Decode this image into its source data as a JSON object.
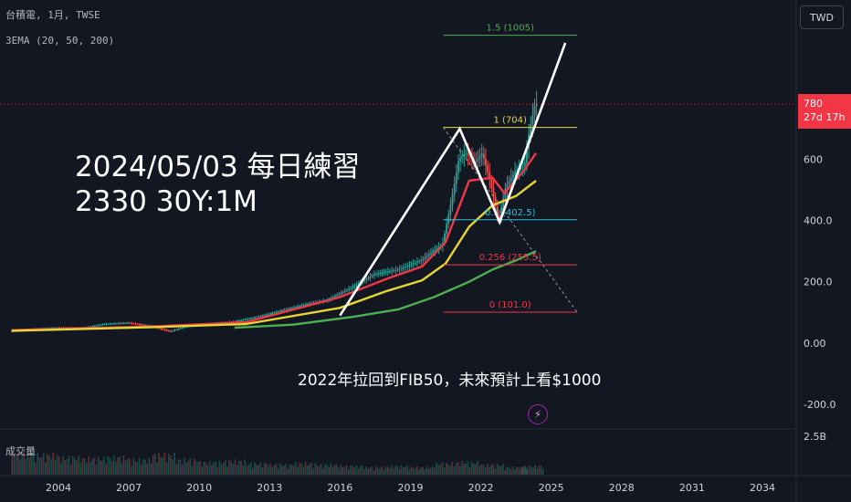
{
  "header": {
    "symbol_line": "台積電, 1月, TWSE",
    "indicator_line": "3EMA (20, 50, 200)",
    "currency": "TWD"
  },
  "price_tag": {
    "price": "780",
    "countdown": "27d 17h",
    "color": "#f23645"
  },
  "annotations": {
    "title_line1": "2024/05/03 每日練習",
    "title_line2": "2330 30Y:1M",
    "note": "2022年拉回到FIB50，未來預計上看$1000"
  },
  "volume_pane": {
    "label": "成交量",
    "max_label": "2.5B"
  },
  "chart_data": {
    "type": "candlestick",
    "symbol": "台積電",
    "interval": "1月",
    "exchange": "TWSE",
    "currency": "TWD",
    "last_price": 780,
    "x_ticks": [
      "2004",
      "2007",
      "2010",
      "2013",
      "2016",
      "2019",
      "2022",
      "2025",
      "2028",
      "2031",
      "2034"
    ],
    "y_ticks": [
      "600",
      "400.0",
      "200.0",
      "0.00",
      "-200.0"
    ],
    "ylim": [
      -230,
      1010
    ],
    "grid": false,
    "price_path": [
      [
        2002.0,
        38
      ],
      [
        2003.0,
        45
      ],
      [
        2004.0,
        50
      ],
      [
        2005.0,
        48
      ],
      [
        2006.0,
        62
      ],
      [
        2007.0,
        66
      ],
      [
        2008.0,
        55
      ],
      [
        2008.8,
        38
      ],
      [
        2009.5,
        55
      ],
      [
        2010.5,
        62
      ],
      [
        2011.5,
        70
      ],
      [
        2012.5,
        85
      ],
      [
        2013.5,
        105
      ],
      [
        2014.5,
        125
      ],
      [
        2015.5,
        140
      ],
      [
        2016.5,
        180
      ],
      [
        2017.5,
        225
      ],
      [
        2018.5,
        240
      ],
      [
        2019.5,
        270
      ],
      [
        2020.0,
        300
      ],
      [
        2020.4,
        320
      ],
      [
        2020.8,
        470
      ],
      [
        2021.1,
        600
      ],
      [
        2021.4,
        620
      ],
      [
        2021.8,
        590
      ],
      [
        2022.1,
        620
      ],
      [
        2022.4,
        540
      ],
      [
        2022.8,
        400
      ],
      [
        2023.1,
        510
      ],
      [
        2023.5,
        560
      ],
      [
        2023.9,
        580
      ],
      [
        2024.1,
        690
      ],
      [
        2024.35,
        780
      ]
    ],
    "ema": [
      {
        "name": "EMA 20",
        "color": "#f23645",
        "points": [
          [
            2002.0,
            42
          ],
          [
            2008.0,
            54
          ],
          [
            2012.0,
            68
          ],
          [
            2016.0,
            150
          ],
          [
            2018.0,
            210
          ],
          [
            2019.5,
            250
          ],
          [
            2020.5,
            330
          ],
          [
            2021.5,
            530
          ],
          [
            2022.5,
            540
          ],
          [
            2023.0,
            490
          ],
          [
            2023.8,
            560
          ],
          [
            2024.35,
            620
          ]
        ]
      },
      {
        "name": "EMA 50",
        "color": "#e6d633",
        "points": [
          [
            2002.0,
            40
          ],
          [
            2008.0,
            52
          ],
          [
            2012.0,
            62
          ],
          [
            2016.0,
            115
          ],
          [
            2018.0,
            170
          ],
          [
            2019.5,
            205
          ],
          [
            2020.5,
            260
          ],
          [
            2021.5,
            380
          ],
          [
            2022.5,
            450
          ],
          [
            2023.5,
            480
          ],
          [
            2024.35,
            530
          ]
        ]
      },
      {
        "name": "EMA 200",
        "color": "#4caf50",
        "points": [
          [
            2011.5,
            50
          ],
          [
            2014.0,
            60
          ],
          [
            2016.5,
            85
          ],
          [
            2018.5,
            110
          ],
          [
            2020.0,
            150
          ],
          [
            2021.5,
            200
          ],
          [
            2022.5,
            240
          ],
          [
            2023.5,
            270
          ],
          [
            2024.35,
            300
          ]
        ]
      }
    ],
    "volume": [
      [
        2002.5,
        0.9
      ],
      [
        2003.5,
        0.8
      ],
      [
        2004.5,
        0.7
      ],
      [
        2005.5,
        0.65
      ],
      [
        2006.5,
        0.7
      ],
      [
        2007.5,
        0.6
      ],
      [
        2008.5,
        0.8
      ],
      [
        2009.5,
        0.6
      ],
      [
        2010.5,
        0.5
      ],
      [
        2011.5,
        0.55
      ],
      [
        2012.5,
        0.45
      ],
      [
        2013.5,
        0.4
      ],
      [
        2014.5,
        0.45
      ],
      [
        2015.5,
        0.4
      ],
      [
        2016.5,
        0.35
      ],
      [
        2017.5,
        0.3
      ],
      [
        2018.5,
        0.35
      ],
      [
        2019.5,
        0.3
      ],
      [
        2020.5,
        0.45
      ],
      [
        2021.5,
        0.5
      ],
      [
        2022.5,
        0.4
      ],
      [
        2023.5,
        0.3
      ],
      [
        2024.2,
        0.35
      ]
    ],
    "fibonacci": {
      "levels": [
        {
          "label": "1.5 (1005)",
          "value": 1005,
          "color": "#4caf50"
        },
        {
          "label": "1 (704)",
          "value": 704,
          "color": "#e6d633"
        },
        {
          "label": "0.5 (402.5)",
          "value": 402.5,
          "color": "#26c6da"
        },
        {
          "label": "0.256 (255.5)",
          "value": 255.5,
          "color": "#f23645"
        },
        {
          "label": "0 (101.0)",
          "value": 101.0,
          "color": "#f23645"
        }
      ],
      "x_range": [
        2020.4,
        2026.1
      ],
      "trend_line": [
        [
          2020.4,
          704
        ],
        [
          2026.1,
          101.0
        ]
      ]
    },
    "drawn_path": [
      [
        2016.0,
        90
      ],
      [
        2021.1,
        700
      ],
      [
        2022.8,
        395
      ],
      [
        2025.6,
        980
      ]
    ]
  }
}
